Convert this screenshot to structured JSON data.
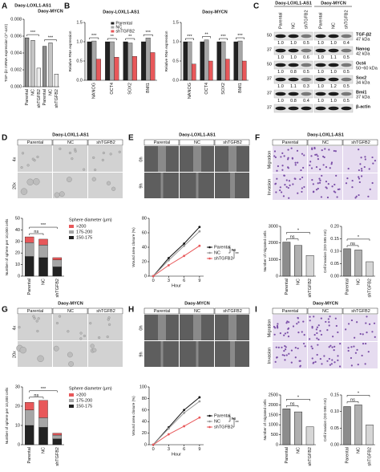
{
  "panels": [
    "A",
    "B",
    "C",
    "D",
    "E",
    "F",
    "G",
    "H",
    "I"
  ],
  "chart_data": [
    {
      "type": "bar",
      "groups": [
        "Daoy-LOXL1-AS1",
        "Daoy-MYCN"
      ],
      "ylabel": "TGF-β2 mRNA expression (2^-ΔCt)",
      "categories": [
        "Parental",
        "NC",
        "shTGFB2",
        "Parental",
        "NC",
        "shTGFB2"
      ],
      "values": [
        0.0058,
        0.0055,
        0.0022,
        0.0048,
        0.0052,
        0.0015
      ],
      "colors": [
        "#8c8c8c",
        "#c4c4c4",
        "#ececec",
        "#8c8c8c",
        "#c4c4c4",
        "#ececec"
      ],
      "ylim": [
        0,
        0.008
      ],
      "yticks": [
        {
          "value": 0,
          "label": "0.000"
        },
        0.002,
        0.004,
        0.006,
        0.008
      ],
      "annotations": [
        "***",
        "***"
      ]
    },
    {
      "type": "grouped_bar",
      "title": "Daoy-LOXL1-AS1",
      "ylabel": "Relative RNA expression",
      "categories": [
        "NANOG",
        "OCT4",
        "SOX2",
        "BMI1"
      ],
      "series": [
        {
          "name": "Parental",
          "color": "#222222",
          "values": [
            1,
            1,
            1,
            1
          ]
        },
        {
          "name": "NC",
          "color": "#a6a6a6",
          "values": [
            1.02,
            1.0,
            0.97,
            1.1
          ]
        },
        {
          "name": "shTGFB2",
          "color": "#e8585a",
          "values": [
            0.55,
            0.6,
            0.62,
            0.72
          ]
        }
      ],
      "ylim": [
        0,
        1.5
      ],
      "yticks": [
        {
          "value": 0,
          "label": "0.0"
        },
        0.5,
        {
          "value": 1,
          "label": "1.0"
        },
        1.5
      ],
      "legend": "upper center",
      "annotations": [
        "***",
        "**",
        "**",
        "***"
      ]
    },
    {
      "type": "grouped_bar",
      "title": "Daoy-MYCN",
      "ylabel": "Relative RNA expression",
      "categories": [
        "NANOG",
        "OCT4",
        "SOX2",
        "BMI1"
      ],
      "series": [
        {
          "color": "#222222",
          "values": [
            1,
            1,
            1,
            1
          ]
        },
        {
          "color": "#a6a6a6",
          "values": [
            1.0,
            1.05,
            1.0,
            1.02
          ]
        },
        {
          "color": "#e8585a",
          "values": [
            0.42,
            0.5,
            0.55,
            0.5
          ]
        }
      ],
      "ylim": [
        0,
        1.5
      ],
      "yticks": [
        {
          "value": 0,
          "label": "0.0"
        },
        0.5,
        {
          "value": 1,
          "label": "1.0"
        },
        1.5
      ],
      "annotations": [
        "***",
        "**",
        "***",
        "***"
      ]
    },
    {
      "type": "stacked_bar",
      "ylabel": "Number of sphere per 10,000 cells",
      "legend_title": "Sphere diameter (μm)",
      "categories": [
        "Parental",
        "NC",
        "shTGFB2"
      ],
      "series": [
        {
          "name": "150-175",
          "color": "#222222",
          "values": [
            17,
            16,
            8
          ]
        },
        {
          "name": "175-200",
          "color": "#a6a6a6",
          "values": [
            12,
            11,
            6
          ]
        },
        {
          "name": ">200",
          "color": "#e8585a",
          "values": [
            5,
            5,
            2
          ]
        }
      ],
      "ylim": [
        0,
        50
      ],
      "yticks": [
        0,
        10,
        20,
        30,
        40,
        50
      ],
      "annotations": [
        "ns",
        "***"
      ]
    },
    {
      "type": "line",
      "xlabel": "Hour",
      "ylabel": "Wound area closure (%)",
      "x": [
        0,
        3,
        6,
        9
      ],
      "xlim": [
        -0.8,
        9.8
      ],
      "xticks": [
        0,
        3,
        6,
        9
      ],
      "ylim": [
        0,
        80
      ],
      "yticks": [
        0,
        20,
        40,
        60,
        80
      ],
      "series": [
        {
          "name": "Parental",
          "color": "#111111",
          "values": [
            0,
            25,
            45,
            68
          ]
        },
        {
          "name": "NC",
          "color": "#9a9a9a",
          "values": [
            0,
            22,
            42,
            62
          ]
        },
        {
          "name": "shTGFB2",
          "color": "#e8585a",
          "values": [
            0,
            15,
            28,
            42
          ]
        }
      ],
      "annotations": [
        "ns",
        "**"
      ]
    },
    {
      "type": "bar",
      "ylabel": "Number of migrated cells",
      "categories": [
        "Parental",
        "NC",
        "shTGFB2"
      ],
      "values": [
        2050,
        1850,
        1250
      ],
      "colors": [
        "#8c8c8c",
        "#b0b0b0",
        "#d6d6d6"
      ],
      "ylim": [
        0,
        3000
      ],
      "yticks": [
        0,
        1000,
        2000,
        3000
      ],
      "annotations": [
        "ns",
        "*"
      ]
    },
    {
      "type": "bar",
      "ylabel": "Cell invasion (OD 595 nm)",
      "categories": [
        "Parental",
        "NC",
        "shTGFB2"
      ],
      "values": [
        0.11,
        0.105,
        0.058
      ],
      "colors": [
        "#8c8c8c",
        "#b0b0b0",
        "#d6d6d6"
      ],
      "ylim": [
        0,
        0.2
      ],
      "yticks": [
        {
          "value": 0,
          "label": "0.00"
        },
        0.05,
        {
          "value": 0.1,
          "label": "0.10"
        },
        0.15,
        {
          "value": 0.2,
          "label": "0.20"
        }
      ],
      "annotations": [
        "ns",
        "*"
      ]
    },
    {
      "type": "stacked_bar",
      "ylabel": "Number of sphere per 10,000 cells",
      "legend_title": "Sphere diameter (μm)",
      "categories": [
        "Parental",
        "NC",
        "shTGFB2"
      ],
      "series": [
        {
          "name": "150-175",
          "color": "#222222",
          "values": [
            10,
            9,
            3
          ]
        },
        {
          "name": "175-200",
          "color": "#a6a6a6",
          "values": [
            8,
            5,
            2
          ]
        },
        {
          "name": ">200",
          "color": "#e8585a",
          "values": [
            4,
            9,
            1
          ]
        }
      ],
      "ylim": [
        0,
        30
      ],
      "yticks": [
        0,
        10,
        20,
        30
      ],
      "annotations": [
        "ns",
        "***"
      ]
    },
    {
      "type": "line",
      "xlabel": "Hour",
      "ylabel": "Wound area closure (%)",
      "x": [
        0,
        3,
        6,
        9
      ],
      "xlim": [
        -0.8,
        9.8
      ],
      "xticks": [
        0,
        3,
        6,
        9
      ],
      "ylim": [
        0,
        100
      ],
      "yticks": [
        0,
        20,
        40,
        60,
        80,
        100
      ],
      "series": [
        {
          "name": "Parental",
          "color": "#111111",
          "values": [
            0,
            30,
            60,
            82
          ]
        },
        {
          "name": "NC",
          "color": "#9a9a9a",
          "values": [
            0,
            28,
            55,
            75
          ]
        },
        {
          "name": "shTGFB2",
          "color": "#e8585a",
          "values": [
            0,
            18,
            32,
            47
          ]
        }
      ],
      "annotations": [
        "ns",
        "**"
      ]
    },
    {
      "type": "bar",
      "ylabel": "Number of migrated cells",
      "categories": [
        "Parental",
        "NC",
        "shTGFB2"
      ],
      "values": [
        1800,
        1650,
        900
      ],
      "colors": [
        "#8c8c8c",
        "#b0b0b0",
        "#d6d6d6"
      ],
      "ylim": [
        0,
        2500
      ],
      "yticks": [
        0,
        500,
        1000,
        1500,
        2000,
        2500
      ],
      "annotations": [
        "ns",
        "*"
      ]
    },
    {
      "type": "bar",
      "ylabel": "Cell invasion (OD 595 nm)",
      "categories": [
        "Parental",
        "NC",
        "shTGFB2"
      ],
      "values": [
        0.115,
        0.12,
        0.06
      ],
      "colors": [
        "#8c8c8c",
        "#b0b0b0",
        "#d6d6d6"
      ],
      "ylim": [
        0,
        0.15
      ],
      "yticks": [
        {
          "value": 0,
          "label": "0.00"
        },
        0.05,
        {
          "value": 0.1,
          "label": "0.10"
        },
        0.15
      ],
      "annotations": [
        "ns",
        "*"
      ]
    }
  ],
  "image_panels": [
    {
      "title": "Daoy-LOXL1-AS1",
      "columns": [
        "Parental",
        "NC",
        "shTGFB2"
      ],
      "rows": [
        "4x",
        "20x"
      ]
    },
    {
      "title": "Daoy-LOXL1-AS1",
      "columns": [
        "Parental",
        "NC",
        "shTGFB2"
      ],
      "rows": [
        "0h",
        "9h"
      ]
    },
    {
      "title": "Daoy-LOXL1-AS1",
      "columns": [
        "Parental",
        "NC",
        "shTGFB2"
      ],
      "rows": [
        "Migration",
        "Invasion"
      ]
    },
    {
      "title": "Daoy-MYCN",
      "columns": [
        "Parental",
        "NC",
        "shTGFB2"
      ],
      "rows": [
        "4x",
        "20x"
      ]
    },
    {
      "title": "Daoy-MYCN",
      "columns": [
        "Parental",
        "NC",
        "shTGFB2"
      ],
      "rows": [
        "0h",
        "9h"
      ]
    },
    {
      "title": "Daoy-MYCN",
      "columns": [
        "Parental",
        "NC",
        "shTGFB2"
      ],
      "rows": [
        "Migration",
        "Invasion"
      ]
    }
  ],
  "blot": {
    "groups": [
      "Daoy-LOXL1-AS1",
      "Daoy-MYCN"
    ],
    "lanes": [
      "Parental",
      "NC",
      "shTGFB2",
      "Parental",
      "NC",
      "shTGFB2"
    ],
    "rows": [
      {
        "label": "TGF-β2",
        "size": "47 kDa",
        "marker": "50",
        "ratios": [
          "1.0",
          "1.0",
          "0.5",
          "1.0",
          "1.0",
          "0.4"
        ]
      },
      {
        "label": "Nanog",
        "size": "42 kDa",
        "marker": "37",
        "ratios": [
          "1.0",
          "1.0",
          "0.6",
          "1.0",
          "1.1",
          "0.5"
        ]
      },
      {
        "label": "Oct4",
        "size": "50~60 kDa",
        "marker": "50",
        "ratios": [
          "1.0",
          "0.8",
          "0.5",
          "1.0",
          "1.0",
          "0.5"
        ]
      },
      {
        "label": "Sox2",
        "size": "34 kDa",
        "marker": "37",
        "ratios": [
          "1.0",
          "1.1",
          "0.3",
          "1.0",
          "1.2",
          "0.5"
        ]
      },
      {
        "label": "Bmi1",
        "size": "37 kDa",
        "marker": "37",
        "ratios": [
          "1.0",
          "0.8",
          "0.4",
          "1.0",
          "1.0",
          "0.5"
        ]
      },
      {
        "label": "β-actin",
        "marker": "37"
      }
    ]
  }
}
